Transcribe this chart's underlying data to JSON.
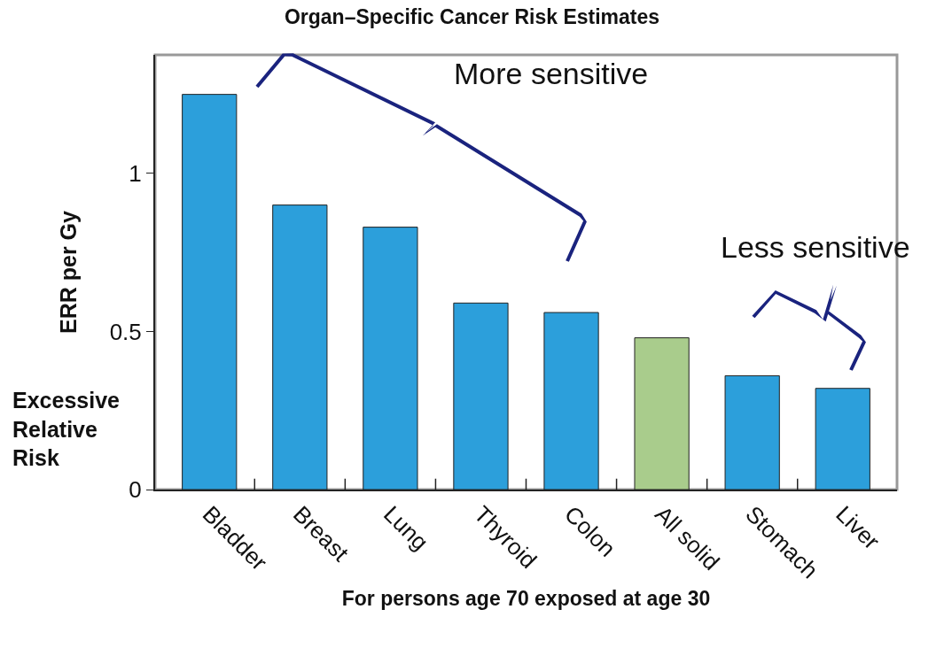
{
  "chart_data": {
    "type": "bar",
    "title": "Organ–Specific Cancer Risk Estimates",
    "xlabel": "For persons age 70 exposed at age 30",
    "ylabel": "ERR per Gy",
    "categories": [
      "Bladder",
      "Breast",
      "Lung",
      "Thyroid",
      "Colon",
      "All solid",
      "Stomach",
      "Liver"
    ],
    "values": [
      1.25,
      0.9,
      0.83,
      0.59,
      0.56,
      0.48,
      0.36,
      0.32
    ],
    "colors": [
      "#2c9fdb",
      "#2c9fdb",
      "#2c9fdb",
      "#2c9fdb",
      "#2c9fdb",
      "#a9cc8c",
      "#2c9fdb",
      "#2c9fdb"
    ],
    "ylim": [
      0,
      1.375
    ],
    "yticks": [
      0,
      0.5,
      1
    ],
    "grid": false,
    "annotations": [
      "More sensitive",
      "Less sensitive",
      "Excessive Relative Risk"
    ]
  }
}
